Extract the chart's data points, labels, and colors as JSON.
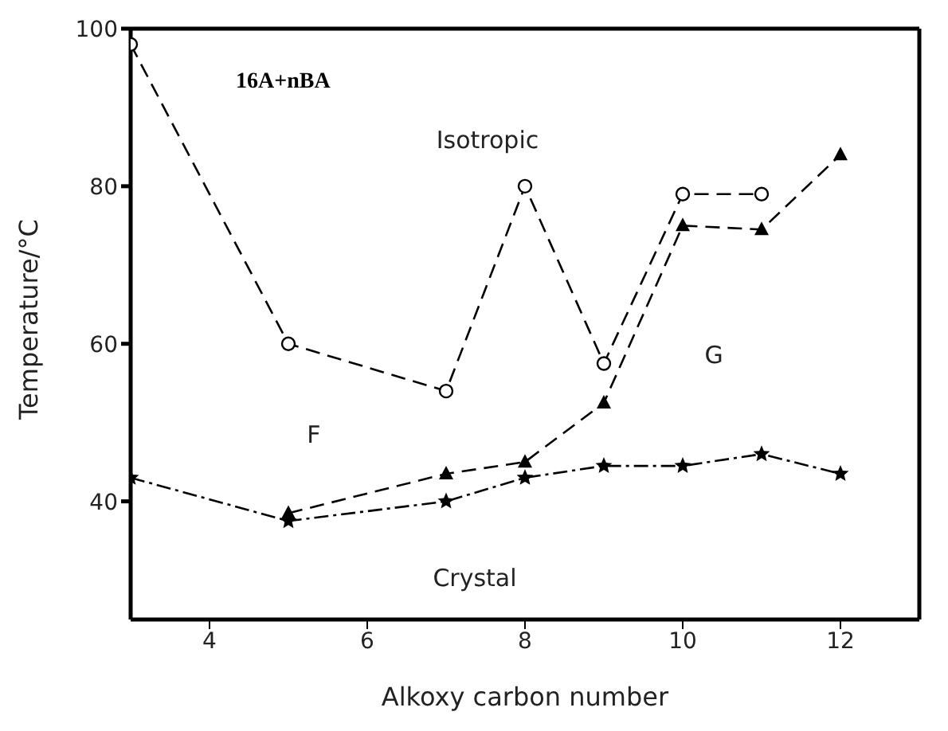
{
  "chart_data": {
    "type": "line",
    "title": "16A+nBA",
    "xlabel": "Alkoxy carbon number",
    "ylabel": "Temperature/°C",
    "x": [
      3,
      5,
      7,
      8,
      9,
      10,
      11,
      12
    ],
    "series": [
      {
        "color": "#000000",
        "marker": "circle",
        "line_style": "dashed",
        "values": [
          98,
          60,
          54,
          80,
          57.5,
          79,
          79,
          null
        ]
      },
      {
        "color": "#000000",
        "marker": "triangle",
        "line_style": "dashed",
        "values": [
          null,
          38.5,
          43.5,
          45,
          52.5,
          75,
          74.5,
          84
        ]
      },
      {
        "color": "#000000",
        "marker": "star",
        "line_style": "dotted",
        "values": [
          43,
          37.5,
          40,
          43,
          44.5,
          44.5,
          46,
          43.5
        ]
      }
    ],
    "xlim": [
      3,
      13
    ],
    "xticks": [
      4,
      6,
      8,
      10,
      12
    ],
    "ylim": [
      25,
      100
    ],
    "yticks": [
      40,
      60,
      80,
      100
    ],
    "annotations": [
      "Isotropic",
      "F",
      "G",
      "Crystal"
    ]
  }
}
